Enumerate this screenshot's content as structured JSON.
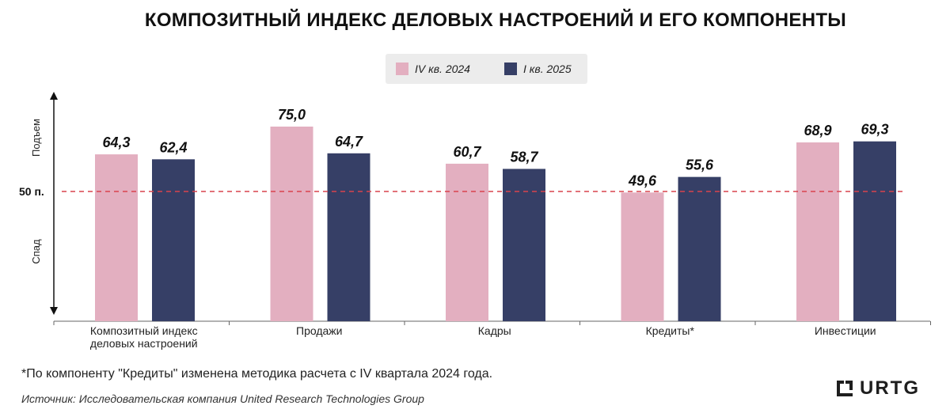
{
  "chart_data": {
    "type": "bar",
    "title": "КОМПОЗИТНЫЙ ИНДЕКС ДЕЛОВЫХ НАСТРОЕНИЙ И ЕГО КОМПОНЕНТЫ",
    "categories": [
      [
        "Композитный индекс",
        "деловых настроений"
      ],
      [
        "Продажи"
      ],
      [
        "Кадры"
      ],
      [
        "Кредиты*"
      ],
      [
        "Инвестиции"
      ]
    ],
    "series": [
      {
        "name": "IV кв. 2024",
        "color": "#e3afc0",
        "values": [
          64.3,
          75.0,
          60.7,
          49.6,
          68.9
        ],
        "labels": [
          "64,3",
          "75,0",
          "60,7",
          "49,6",
          "68,9"
        ]
      },
      {
        "name": "I кв. 2025",
        "color": "#363f66",
        "values": [
          62.4,
          64.7,
          58.7,
          55.6,
          69.3
        ],
        "labels": [
          "62,4",
          "64,7",
          "58,7",
          "55,6",
          "69,3"
        ]
      }
    ],
    "threshold": {
      "value": 50,
      "label": "50 п.",
      "color": "#d9434d",
      "style": "dashed"
    },
    "y_axis": {
      "up_label": "Подъем",
      "down_label": "Спад"
    },
    "legend_position": "top-center",
    "grid": false
  },
  "footnote": "*По компоненту \"Кредиты\" изменена методика расчета с IV квартала 2024 года.",
  "source": "Источник: Исследовательская компания United Research Technologies Group",
  "logo": {
    "text": "URTG",
    "icon": "urtg-bracket-icon"
  }
}
